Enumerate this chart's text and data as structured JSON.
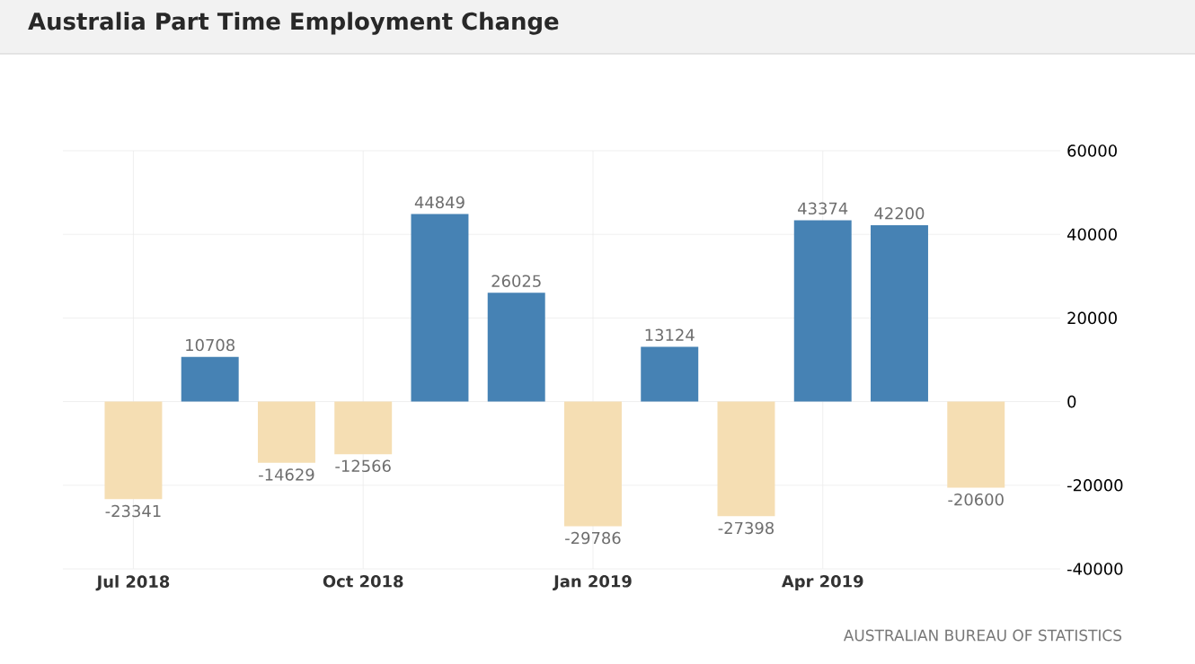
{
  "chart_data": {
    "type": "bar",
    "title": "Australia Part Time Employment Change",
    "categories": [
      "Jul 2018",
      null,
      null,
      "Oct 2018",
      null,
      null,
      "Jan 2019",
      null,
      null,
      "Apr 2019",
      null,
      null
    ],
    "values": [
      -23341,
      10708,
      -14629,
      -12566,
      44849,
      26025,
      -29786,
      13124,
      -27398,
      43374,
      42200,
      -20600
    ],
    "colors": [
      "#f5deb3",
      "#4682b4",
      "#f5deb3",
      "#f5deb3",
      "#4682b4",
      "#4682b4",
      "#f5deb3",
      "#4682b4",
      "#f5deb3",
      "#4682b4",
      "#4682b4",
      "#f5deb3"
    ],
    "ylim": [
      -40000,
      60000
    ],
    "yticks": [
      -40000,
      -20000,
      0,
      20000,
      40000,
      60000
    ],
    "grid": true,
    "data_labels": true,
    "annotations": [
      "AUSTRALIAN BUREAU OF STATISTICS"
    ]
  }
}
